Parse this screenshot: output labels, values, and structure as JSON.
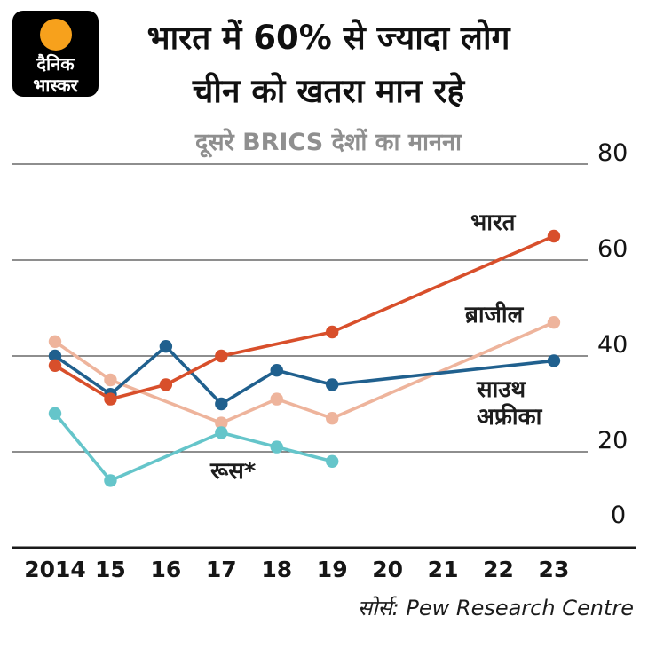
{
  "brand": {
    "logo_line1": "दैनिक",
    "logo_line2": "भास्कर",
    "logo_bg": "#000000",
    "sun_color": "#f7a11c"
  },
  "header": {
    "title_line1": "भारत में 60% से ज्यादा लोग",
    "title_line2": "चीन को खतरा मान रहे",
    "subtitle": "दूसरे BRICS देशों का मानना"
  },
  "source": "सोर्स: Pew Research Centre",
  "chart_data": {
    "type": "line",
    "title": "भारत में 60% से ज्यादा लोग चीन को खतरा मान रहे",
    "subtitle": "दूसरे BRICS देशों का मानना",
    "x_tick_labels": [
      "2014",
      "15",
      "16",
      "17",
      "18",
      "19",
      "20",
      "21",
      "22",
      "23"
    ],
    "x_tick_years": [
      2014,
      2015,
      2016,
      2017,
      2018,
      2019,
      2020,
      2021,
      2022,
      2023
    ],
    "yticks": [
      0,
      20,
      40,
      60,
      80
    ],
    "ylim": [
      0,
      80
    ],
    "grid": "horizontal",
    "ytick_side": "right",
    "legend_position": "labels-on-lines",
    "series": [
      {
        "name": "भारत",
        "color": "#d84f2b",
        "x": [
          2014,
          2015,
          2016,
          2017,
          2019,
          2023
        ],
        "values": [
          38,
          31,
          34,
          40,
          45,
          65
        ]
      },
      {
        "name": "ब्राजील",
        "color": "#eeb49c",
        "x": [
          2014,
          2015,
          2017,
          2018,
          2019,
          2023
        ],
        "values": [
          43,
          35,
          26,
          31,
          27,
          47
        ]
      },
      {
        "name": "साउथ अफ्रीका",
        "color": "#20608e",
        "x": [
          2014,
          2015,
          2016,
          2017,
          2018,
          2019,
          2023
        ],
        "values": [
          40,
          32,
          42,
          30,
          37,
          34,
          39
        ]
      },
      {
        "name": "रूस*",
        "color": "#65c5ca",
        "x": [
          2014,
          2015,
          2017,
          2018,
          2019
        ],
        "values": [
          28,
          14,
          24,
          21,
          18
        ]
      }
    ],
    "source": "Pew Research Centre"
  }
}
